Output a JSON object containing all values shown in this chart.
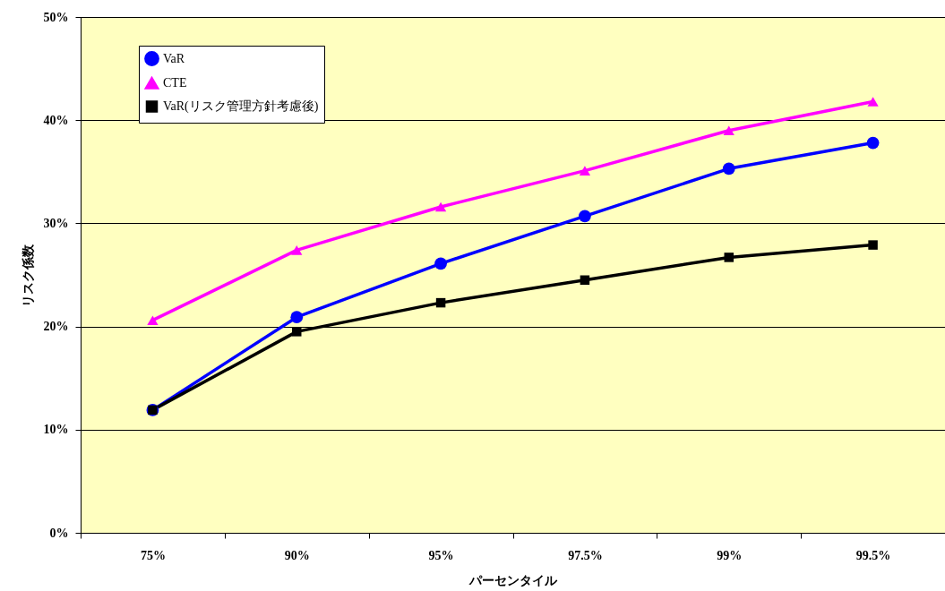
{
  "chart_data": {
    "type": "line",
    "xlabel": "パーセンタイル",
    "ylabel": "リスク係数",
    "categories": [
      "75%",
      "90%",
      "95%",
      "97.5%",
      "99%",
      "99.5%"
    ],
    "series": [
      {
        "name": "VaR",
        "color": "#0000ff",
        "marker": "circle",
        "values": [
          11.9,
          20.9,
          26.1,
          30.7,
          35.3,
          37.8
        ]
      },
      {
        "name": "CTE",
        "color": "#ff00ff",
        "marker": "triangle",
        "values": [
          20.6,
          27.4,
          31.6,
          35.1,
          39.0,
          41.8
        ]
      },
      {
        "name": "VaR(リスク管理方針考慮後)",
        "color": "#000000",
        "marker": "square",
        "values": [
          11.9,
          19.5,
          22.3,
          24.5,
          26.7,
          27.9
        ]
      }
    ],
    "ylim": [
      0,
      50
    ],
    "yticks": [
      {
        "value": 0,
        "label": "0%"
      },
      {
        "value": 10,
        "label": "10%"
      },
      {
        "value": 20,
        "label": "20%"
      },
      {
        "value": 30,
        "label": "30%"
      },
      {
        "value": 40,
        "label": "40%"
      },
      {
        "value": 50,
        "label": "50%"
      }
    ],
    "grid": "y",
    "legend": "top left",
    "line_style": "solid"
  }
}
